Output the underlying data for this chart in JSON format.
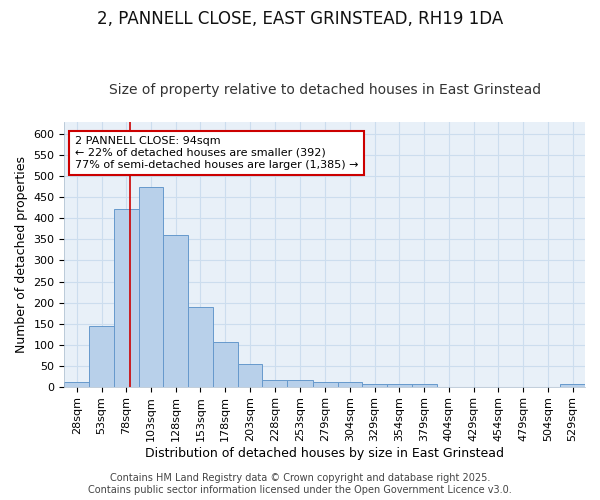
{
  "title_line1": "2, PANNELL CLOSE, EAST GRINSTEAD, RH19 1DA",
  "title_line2": "Size of property relative to detached houses in East Grinstead",
  "xlabel": "Distribution of detached houses by size in East Grinstead",
  "ylabel": "Number of detached properties",
  "bar_edges": [
    28,
    53,
    78,
    103,
    128,
    153,
    178,
    203,
    228,
    253,
    279,
    304,
    329,
    354,
    379,
    404,
    429,
    454,
    479,
    504,
    529
  ],
  "bar_widths": [
    25,
    25,
    25,
    25,
    25,
    25,
    25,
    25,
    25,
    26,
    25,
    25,
    25,
    25,
    25,
    25,
    25,
    25,
    25,
    25,
    25
  ],
  "bar_heights": [
    10,
    143,
    422,
    475,
    360,
    190,
    105,
    53,
    15,
    15,
    12,
    10,
    6,
    5,
    5,
    0,
    0,
    0,
    0,
    0,
    5
  ],
  "bar_color": "#b8d0ea",
  "bar_edge_color": "#6699cc",
  "bar_edge_width": 0.7,
  "grid_color": "#ccddee",
  "bg_color": "#ffffff",
  "plot_bg_color": "#e8f0f8",
  "red_line_x": 94,
  "red_line_color": "#cc0000",
  "annotation_text": "2 PANNELL CLOSE: 94sqm\n← 22% of detached houses are smaller (392)\n77% of semi-detached houses are larger (1,385) →",
  "annotation_box_color": "#ffffff",
  "annotation_box_edge": "#cc0000",
  "ylim": [
    0,
    630
  ],
  "yticks": [
    0,
    50,
    100,
    150,
    200,
    250,
    300,
    350,
    400,
    450,
    500,
    550,
    600
  ],
  "footer_text": "Contains HM Land Registry data © Crown copyright and database right 2025.\nContains public sector information licensed under the Open Government Licence v3.0.",
  "title_fontsize": 12,
  "subtitle_fontsize": 10,
  "axis_label_fontsize": 9,
  "tick_fontsize": 8,
  "annotation_fontsize": 8,
  "footer_fontsize": 7
}
